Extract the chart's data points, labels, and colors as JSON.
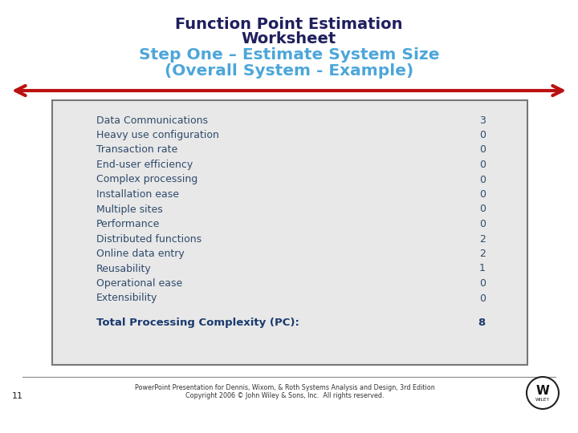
{
  "title_line1": "Function Point Estimation",
  "title_line2": "Worksheet",
  "title_line3": "Step One – Estimate System Size",
  "title_line4": "(Overall System - Example)",
  "items": [
    [
      "Data Communications",
      "3"
    ],
    [
      "Heavy use configuration",
      "0"
    ],
    [
      "Transaction rate",
      "0"
    ],
    [
      "End-user efficiency",
      "0"
    ],
    [
      "Complex processing",
      "0"
    ],
    [
      "Installation ease",
      "0"
    ],
    [
      "Multiple sites",
      "0"
    ],
    [
      "Performance",
      "0"
    ],
    [
      "Distributed functions",
      "2"
    ],
    [
      "Online data entry",
      "2"
    ],
    [
      "Reusability",
      "1"
    ],
    [
      "Operational ease",
      "0"
    ],
    [
      "Extensibility",
      "0"
    ]
  ],
  "total_label": "Total Processing Complexity (PC):",
  "total_value": "8",
  "footer_line1": "PowerPoint Presentation for Dennis, Wixom, & Roth Systems Analysis and Design, 3rd Edition",
  "footer_line2": "Copyright 2006 © John Wiley & Sons, Inc.  All rights reserved.",
  "page_number": "11",
  "title_color_black": "#1f1f5e",
  "title_color_blue": "#4da6d9",
  "item_text_color": "#2e4a6b",
  "total_text_color": "#1a3a6e",
  "box_bg_color": "#e8e8e8",
  "box_border_color": "#777777",
  "arrow_color": "#bb1111",
  "footer_color": "#333333",
  "bg_color": "#ffffff"
}
